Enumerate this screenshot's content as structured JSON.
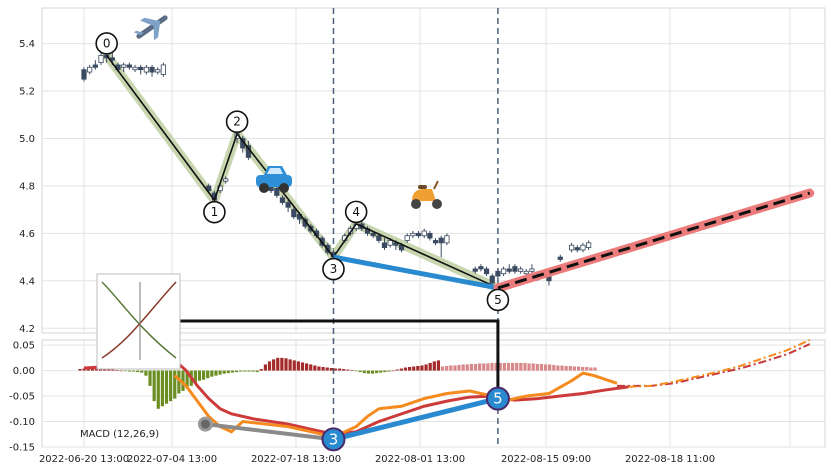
{
  "chart_data": [
    {
      "type": "candlestick",
      "panel": "price",
      "ylim": [
        4.18,
        5.55
      ],
      "y_ticks": [
        "4.2",
        "4.4",
        "4.6",
        "4.8",
        "5.0",
        "5.2",
        "5.4"
      ],
      "candles": [
        [
          0,
          5.29,
          5.25,
          5.3,
          5.24
        ],
        [
          1,
          5.28,
          5.3,
          5.31,
          5.27
        ],
        [
          2,
          5.31,
          5.3,
          5.33,
          5.29
        ],
        [
          3,
          5.32,
          5.35,
          5.37,
          5.31
        ],
        [
          4,
          5.35,
          5.34,
          5.37,
          5.32
        ],
        [
          5,
          5.34,
          5.33,
          5.36,
          5.31
        ],
        [
          6,
          5.31,
          5.29,
          5.32,
          5.28
        ],
        [
          7,
          5.3,
          5.31,
          5.32,
          5.28
        ],
        [
          8,
          5.31,
          5.3,
          5.32,
          5.29
        ],
        [
          9,
          5.29,
          5.3,
          5.31,
          5.28
        ],
        [
          10,
          5.3,
          5.29,
          5.31,
          5.27
        ],
        [
          11,
          5.28,
          5.3,
          5.31,
          5.27
        ],
        [
          12,
          5.3,
          5.28,
          5.31,
          5.26
        ],
        [
          13,
          5.28,
          5.29,
          5.3,
          5.27
        ],
        [
          14,
          5.27,
          5.31,
          5.32,
          5.26
        ],
        [
          22,
          4.8,
          4.78,
          4.81,
          4.77
        ],
        [
          23,
          4.77,
          4.74,
          4.78,
          4.72
        ],
        [
          24,
          4.78,
          4.8,
          4.81,
          4.77
        ],
        [
          25,
          4.82,
          4.83,
          4.84,
          4.81
        ],
        [
          27,
          5.0,
          5.02,
          5.03,
          4.98
        ],
        [
          28,
          5.0,
          4.96,
          5.01,
          4.94
        ],
        [
          29,
          4.97,
          4.92,
          4.99,
          4.91
        ],
        [
          31,
          4.83,
          4.8,
          4.84,
          4.79
        ],
        [
          32,
          4.81,
          4.79,
          4.82,
          4.78
        ],
        [
          33,
          4.8,
          4.78,
          4.81,
          4.77
        ],
        [
          34,
          4.79,
          4.76,
          4.8,
          4.75
        ],
        [
          35,
          4.75,
          4.73,
          4.76,
          4.72
        ],
        [
          36,
          4.73,
          4.71,
          4.74,
          4.69
        ],
        [
          37,
          4.7,
          4.67,
          4.71,
          4.66
        ],
        [
          38,
          4.68,
          4.66,
          4.69,
          4.64
        ],
        [
          39,
          4.66,
          4.63,
          4.67,
          4.62
        ],
        [
          40,
          4.63,
          4.61,
          4.64,
          4.6
        ],
        [
          41,
          4.61,
          4.59,
          4.62,
          4.58
        ],
        [
          42,
          4.58,
          4.55,
          4.59,
          4.54
        ],
        [
          43,
          4.55,
          4.52,
          4.56,
          4.51
        ],
        [
          44,
          4.52,
          4.5,
          4.53,
          4.49
        ],
        [
          46,
          4.57,
          4.59,
          4.6,
          4.56
        ],
        [
          47,
          4.6,
          4.62,
          4.63,
          4.59
        ],
        [
          48,
          4.62,
          4.64,
          4.66,
          4.61
        ],
        [
          49,
          4.64,
          4.62,
          4.65,
          4.61
        ],
        [
          50,
          4.62,
          4.6,
          4.63,
          4.59
        ],
        [
          51,
          4.6,
          4.59,
          4.61,
          4.58
        ],
        [
          52,
          4.59,
          4.57,
          4.6,
          4.56
        ],
        [
          53,
          4.56,
          4.54,
          4.58,
          4.53
        ],
        [
          54,
          4.55,
          4.57,
          4.58,
          4.54
        ],
        [
          55,
          4.56,
          4.55,
          4.57,
          4.53
        ],
        [
          56,
          4.55,
          4.53,
          4.56,
          4.52
        ],
        [
          57,
          4.57,
          4.59,
          4.6,
          4.56
        ],
        [
          58,
          4.59,
          4.6,
          4.61,
          4.58
        ],
        [
          59,
          4.6,
          4.59,
          4.61,
          4.58
        ],
        [
          60,
          4.59,
          4.61,
          4.62,
          4.58
        ],
        [
          61,
          4.6,
          4.58,
          4.61,
          4.57
        ],
        [
          62,
          4.57,
          4.56,
          4.58,
          4.55
        ],
        [
          63,
          4.58,
          4.56,
          4.59,
          4.5
        ],
        [
          64,
          4.56,
          4.59,
          4.6,
          4.55
        ],
        [
          69,
          4.45,
          4.44,
          4.46,
          4.43
        ],
        [
          70,
          4.46,
          4.45,
          4.47,
          4.44
        ],
        [
          71,
          4.45,
          4.43,
          4.46,
          4.42
        ],
        [
          72,
          4.42,
          4.39,
          4.43,
          4.38
        ],
        [
          73,
          4.44,
          4.42,
          4.45,
          4.41
        ],
        [
          74,
          4.43,
          4.45,
          4.46,
          4.42
        ],
        [
          75,
          4.45,
          4.44,
          4.47,
          4.43
        ],
        [
          76,
          4.46,
          4.44,
          4.47,
          4.43
        ],
        [
          77,
          4.44,
          4.45,
          4.46,
          4.43
        ],
        [
          78,
          4.43,
          4.44,
          4.45,
          4.4
        ],
        [
          79,
          4.44,
          4.45,
          4.47,
          4.43
        ],
        [
          80,
          4.43,
          4.41,
          4.44,
          4.4
        ],
        [
          82,
          4.42,
          4.4,
          4.43,
          4.38
        ],
        [
          84,
          4.5,
          4.49,
          4.51,
          4.48
        ],
        [
          86,
          4.53,
          4.55,
          4.56,
          4.52
        ],
        [
          87,
          4.54,
          4.53,
          4.55,
          4.52
        ],
        [
          88,
          4.53,
          4.55,
          4.56,
          4.52
        ],
        [
          89,
          4.54,
          4.56,
          4.57,
          4.53
        ]
      ],
      "wave_points": [
        {
          "label": "0",
          "x": 4,
          "y": 5.35
        },
        {
          "label": "1",
          "x": 23,
          "y": 4.74
        },
        {
          "label": "2",
          "x": 27,
          "y": 5.02
        },
        {
          "label": "3",
          "x": 44,
          "y": 4.5
        },
        {
          "label": "4",
          "x": 48,
          "y": 4.64
        },
        {
          "label": "5",
          "x": 73,
          "y": 4.37
        }
      ],
      "projection": {
        "x": [
          73,
          128
        ],
        "y": [
          4.37,
          4.77
        ]
      },
      "markers": [
        "airplane-icon",
        "car-icon",
        "scooter-icon"
      ]
    },
    {
      "type": "bar",
      "panel": "macd",
      "title": "MACD (12,26,9)",
      "ylim": [
        -0.15,
        0.06
      ],
      "y_ticks": [
        "0.05",
        "0.00",
        "-0.05",
        "-0.10",
        "-0.15"
      ],
      "x_tick_labels": [
        "2022-06-20 13:00",
        "2022-07-04 13:00",
        "2022-07-18 13:00",
        "2022-08-01 13:00",
        "2022-08-15 09:00",
        "2022-08-18 11:00"
      ],
      "macd_line": {
        "x": [
          16,
          18,
          20,
          22,
          24,
          26,
          28,
          32,
          36,
          40,
          44,
          48,
          50,
          52,
          56,
          60,
          64,
          68,
          72,
          74,
          76,
          78,
          82,
          86,
          88,
          90,
          94
        ],
        "y": [
          -0.01,
          -0.03,
          -0.06,
          -0.09,
          -0.11,
          -0.12,
          -0.1,
          -0.105,
          -0.11,
          -0.12,
          -0.13,
          -0.11,
          -0.09,
          -0.075,
          -0.07,
          -0.055,
          -0.045,
          -0.04,
          -0.05,
          -0.06,
          -0.055,
          -0.05,
          -0.045,
          -0.02,
          -0.005,
          -0.01,
          -0.025
        ]
      },
      "signal_line": {
        "x": [
          0,
          8,
          16,
          18,
          20,
          22,
          24,
          26,
          30,
          36,
          40,
          44,
          48,
          52,
          56,
          60,
          64,
          68,
          72,
          74,
          76,
          80,
          84,
          88,
          92,
          96
        ],
        "y": [
          0.005,
          0.01,
          0.02,
          0.0,
          -0.03,
          -0.055,
          -0.075,
          -0.085,
          -0.095,
          -0.105,
          -0.115,
          -0.125,
          -0.12,
          -0.1,
          -0.085,
          -0.07,
          -0.06,
          -0.052,
          -0.05,
          -0.055,
          -0.058,
          -0.055,
          -0.05,
          -0.045,
          -0.038,
          -0.032
        ]
      },
      "macd_projection": {
        "x": [
          96,
          100,
          104,
          108,
          112,
          116,
          120,
          124,
          128
        ],
        "y": [
          -0.032,
          -0.03,
          -0.022,
          -0.012,
          -0.002,
          0.01,
          0.025,
          0.04,
          0.06
        ]
      },
      "signal_projection": {
        "x": [
          94,
          100,
          104,
          108,
          112,
          116,
          120,
          124,
          128
        ],
        "y": [
          -0.03,
          -0.03,
          -0.025,
          -0.015,
          -0.005,
          0.005,
          0.018,
          0.032,
          0.052
        ]
      },
      "histogram": [
        0.003,
        0.004,
        0.005,
        0.005,
        0.006,
        0.005,
        0.004,
        0.003,
        0.002,
        0.001,
        0.0,
        -0.001,
        -0.002,
        -0.002,
        -0.003,
        -0.004,
        -0.01,
        -0.03,
        -0.06,
        -0.075,
        -0.07,
        -0.065,
        -0.06,
        -0.055,
        -0.045,
        -0.04,
        -0.035,
        -0.03,
        -0.025,
        -0.02,
        -0.018,
        -0.015,
        -0.012,
        -0.01,
        -0.008,
        -0.006,
        -0.005,
        -0.004,
        -0.003,
        -0.002,
        -0.002,
        -0.002,
        -0.002,
        -0.003,
        0.003,
        0.012,
        0.018,
        0.022,
        0.025,
        0.025,
        0.024,
        0.022,
        0.02,
        0.018,
        0.016,
        0.014,
        0.012,
        0.01,
        0.008,
        0.007,
        0.006,
        0.005,
        0.004,
        0.004,
        0.003,
        0.002,
        0.001,
        -0.001,
        -0.003,
        -0.005,
        -0.006,
        -0.006,
        -0.005,
        -0.004,
        -0.003,
        -0.002,
        0.0,
        0.002,
        0.004,
        0.006,
        0.007,
        0.008,
        0.009,
        0.01,
        0.012,
        0.015,
        0.018,
        0.02
      ],
      "histogram_projection_start": 90,
      "histogram_projection": [
        0.008,
        0.009,
        0.01,
        0.01,
        0.011,
        0.012,
        0.012,
        0.013,
        0.013,
        0.014,
        0.014,
        0.014,
        0.015,
        0.015,
        0.015,
        0.015,
        0.015,
        0.015,
        0.015,
        0.015,
        0.015,
        0.014,
        0.014,
        0.013,
        0.013,
        0.012,
        0.012,
        0.011,
        0.01,
        0.01,
        0.009,
        0.009,
        0.008,
        0.008,
        0.007,
        0.007,
        0.006,
        0.006
      ],
      "wave_points": [
        {
          "label": "3",
          "x": 44,
          "y": -0.135
        },
        {
          "label": "5",
          "x": 73,
          "y": -0.055
        }
      ],
      "grey_point": {
        "x": 20,
        "y": -0.105
      }
    }
  ]
}
